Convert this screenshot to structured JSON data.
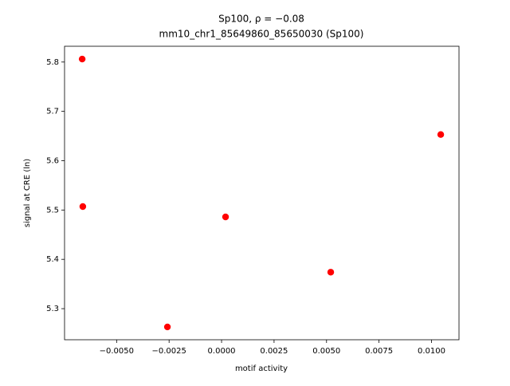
{
  "chart_data": {
    "type": "scatter",
    "title": "Sp100, ρ = −0.08",
    "subtitle": "mm10_chr1_85649860_85650030 (Sp100)",
    "x_label": "motif activity",
    "y_label": "signal at CRE (ln)",
    "x": [
      -0.00664,
      -0.00661,
      -0.00258,
      0.00019,
      0.0052,
      0.01044
    ],
    "values": [
      5.806,
      5.507,
      5.263,
      5.486,
      5.374,
      5.653
    ],
    "color": "#ff0000",
    "xlim": [
      -0.00748,
      0.01131
    ],
    "ylim": [
      5.237,
      5.832
    ],
    "xticks": [
      {
        "value": -0.005,
        "label": "−0.0050"
      },
      {
        "value": -0.0025,
        "label": "−0.0025"
      },
      {
        "value": 0,
        "label": "0.0000"
      },
      {
        "value": 0.0025,
        "label": "0.0025"
      },
      {
        "value": 0.005,
        "label": "0.0050"
      },
      {
        "value": 0.0075,
        "label": "0.0075"
      },
      {
        "value": 0.01,
        "label": "0.0100"
      }
    ],
    "yticks": [
      5.3,
      5.4,
      5.5,
      5.6,
      5.7,
      5.8
    ]
  }
}
